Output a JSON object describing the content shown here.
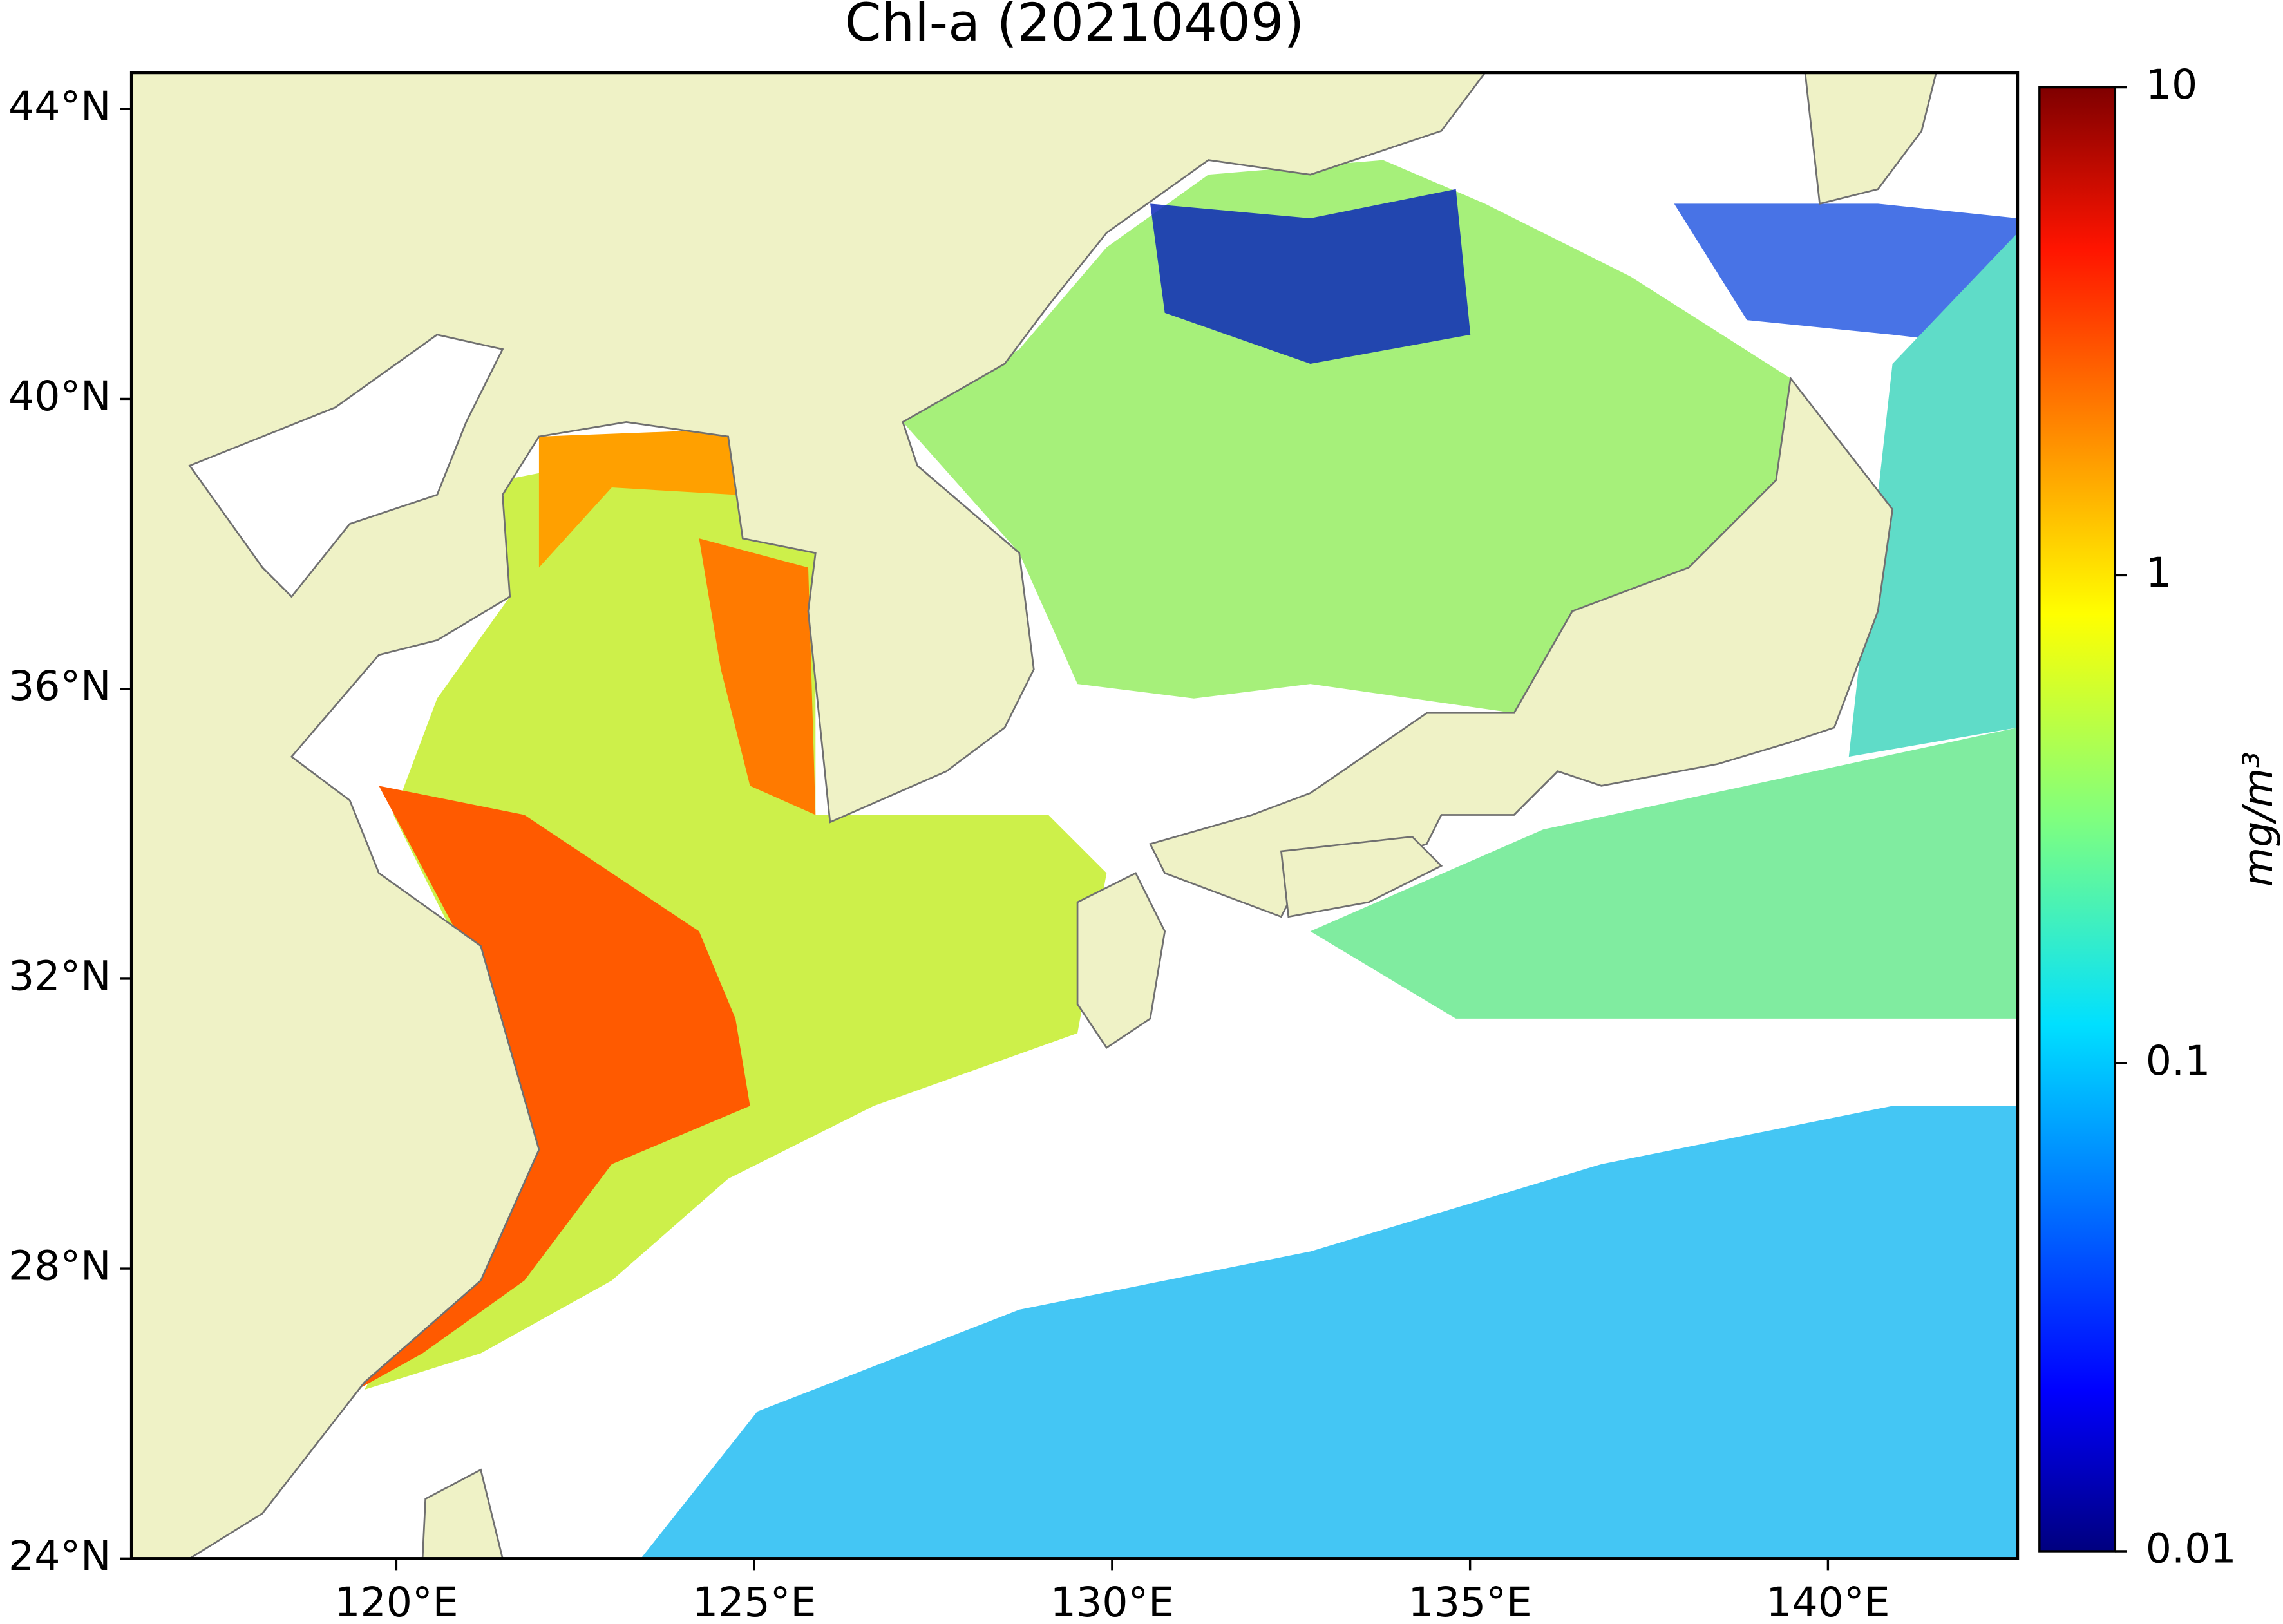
{
  "chart_data": {
    "type": "map",
    "title": "Chl-a (20210409)",
    "xlim": [
      116.3,
      142.65
    ],
    "ylim": [
      24,
      44.5
    ],
    "xticks": [
      {
        "value": 120,
        "label": "120°E"
      },
      {
        "value": 125,
        "label": "125°E"
      },
      {
        "value": 130,
        "label": "130°E"
      },
      {
        "value": 135,
        "label": "135°E"
      },
      {
        "value": 140,
        "label": "140°E"
      }
    ],
    "yticks": [
      {
        "value": 24,
        "label": "24°N"
      },
      {
        "value": 28,
        "label": "28°N"
      },
      {
        "value": 32,
        "label": "32°N"
      },
      {
        "value": 36,
        "label": "36°N"
      },
      {
        "value": 40,
        "label": "40°N"
      },
      {
        "value": 44,
        "label": "44°N"
      }
    ],
    "colorbar": {
      "label": "mg/m³",
      "scale": "log",
      "lim": [
        0.01,
        10
      ],
      "ticks": [
        0.01,
        0.1,
        1,
        10
      ]
    }
  }
}
